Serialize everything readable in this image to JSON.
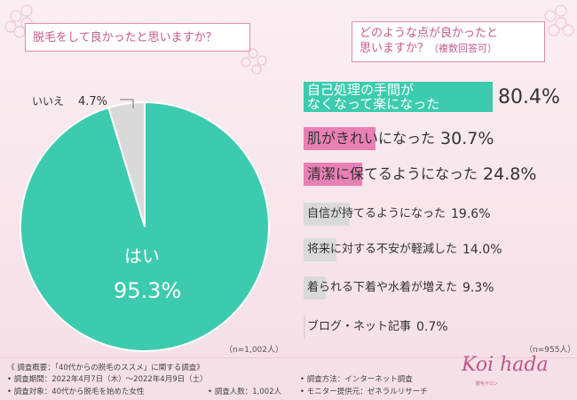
{
  "left_question": "脱毛をして良かったと思いますか？",
  "right_question_line1": "どのような点が良かったと",
  "right_question_line2": "思いますか？",
  "right_question_suffix": "（複数回答可）",
  "left_n": "（n=1,002人）",
  "right_n": "（n=955人）",
  "footer": {
    "overview": "《 調査概要：「40代からの脱毛のススメ」に関する調査》",
    "period": "• 調査期間：2022年4月7日（木）～2022年4月9日（土）",
    "target": "• 調査対象：40代から脱毛を始めた女性",
    "count": "• 調査人数：1,002人",
    "method": "• 調査方法：インターネット調査",
    "provider": "• モニター提供元：ゼネラルリサーチ"
  },
  "logo": "Koi hada",
  "logo_sub": "脱毛サロン",
  "colors": {
    "teal": "#3ccbae",
    "pink": "#e880b6",
    "gray": "#d9d9d9",
    "text": "#333333"
  },
  "chart_data": [
    {
      "type": "pie",
      "labels": [
        "はい",
        "いいえ"
      ],
      "values": [
        95.3,
        4.7
      ],
      "value_labels": [
        "95.3%",
        "4.7%"
      ]
    },
    {
      "type": "bar",
      "orientation": "horizontal",
      "categories": [
        "自己処理の手間がなくなって楽になった",
        "肌がきれいになった",
        "清潔に保てるようになった",
        "自信が持てるようになった",
        "将来に対する不安が軽減した",
        "着られる下着や水着が増えた",
        "ブログ・ネット記事"
      ],
      "category_lines": [
        [
          "自己処理の手間が",
          "なくなって楽になった"
        ],
        [
          "肌がきれいになった"
        ],
        [
          "清潔に保てるようになった"
        ],
        [
          "自信が持てるようになった"
        ],
        [
          "将来に対する不安が軽減した"
        ],
        [
          "着られる下着や水着が増えた"
        ],
        [
          "ブログ・ネット記事"
        ]
      ],
      "values": [
        80.4,
        30.7,
        24.8,
        19.6,
        14.0,
        9.3,
        0.7
      ],
      "value_labels": [
        "80.4%",
        "30.7%",
        "24.8%",
        "19.6%",
        "14.0%",
        "9.3%",
        "0.7%"
      ],
      "xlim": [
        0,
        100
      ]
    }
  ]
}
